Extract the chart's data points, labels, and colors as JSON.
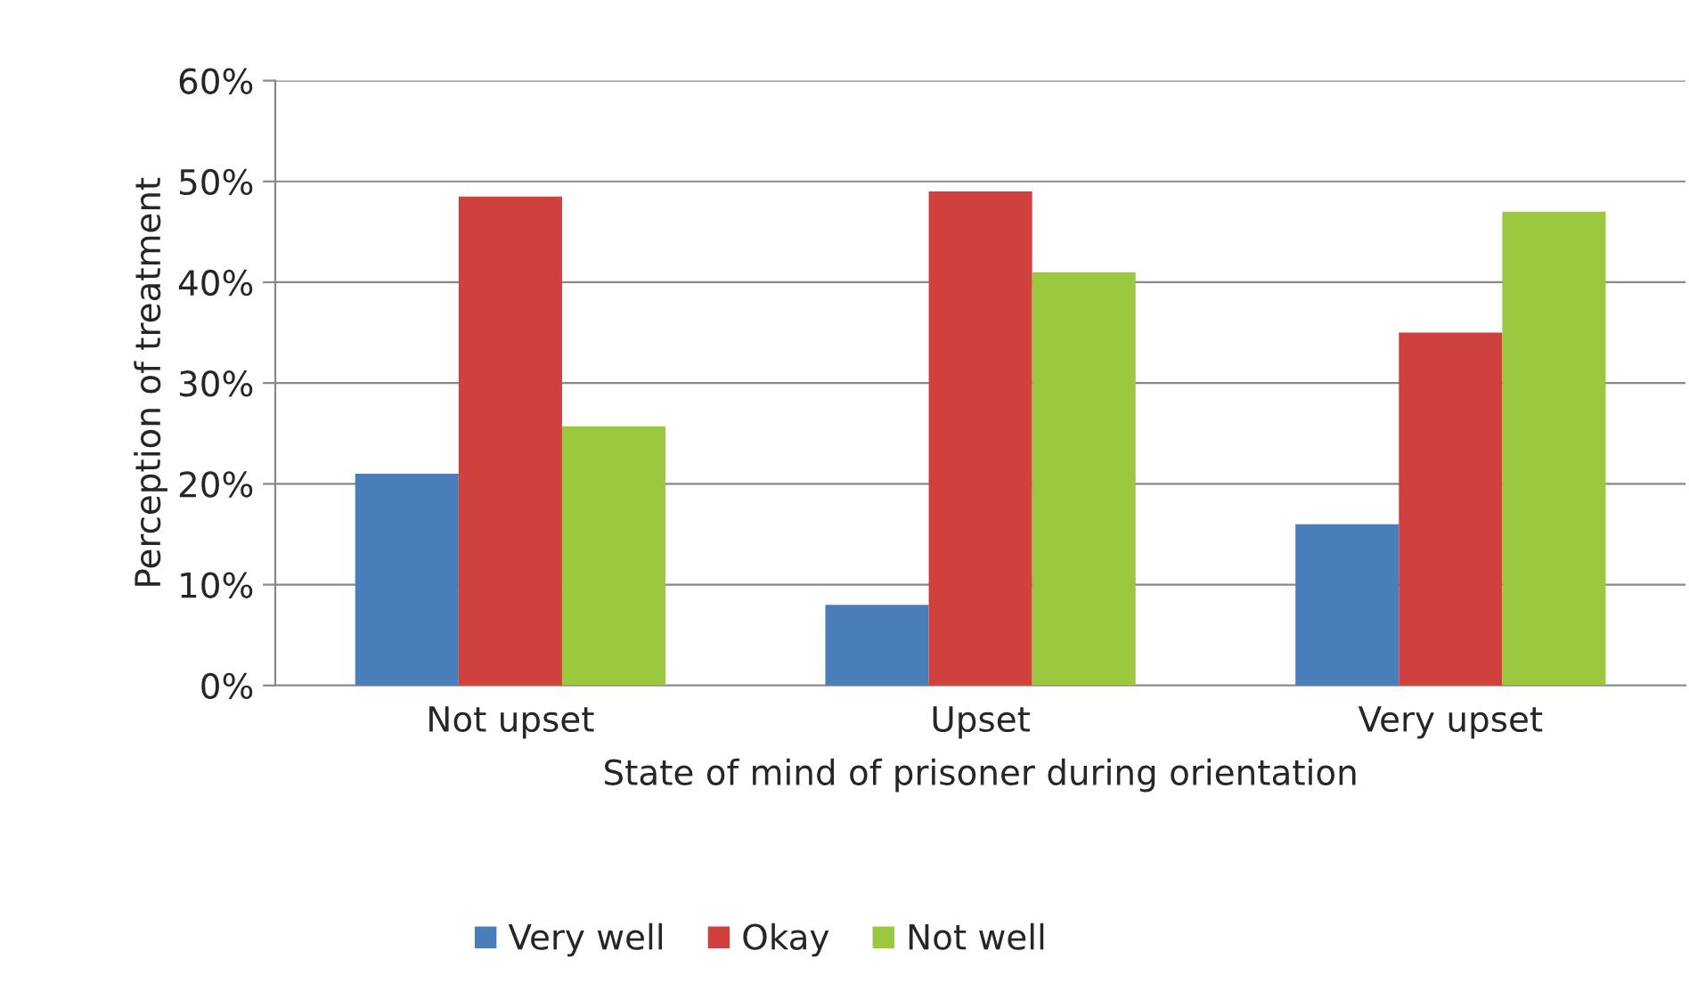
{
  "chart_data": {
    "type": "bar",
    "xlabel": "State of mind of prisoner during orientation",
    "ylabel": "Perception of treatment",
    "categories": [
      "Not upset",
      "Upset",
      "Very upset"
    ],
    "series": [
      {
        "name": "Very well",
        "color": "#4a7ebb",
        "values": [
          21,
          8,
          16
        ]
      },
      {
        "name": "Okay",
        "color": "#d0413e",
        "values": [
          48.5,
          49,
          35
        ]
      },
      {
        "name": "Not well",
        "color": "#9cc83f",
        "values": [
          25.7,
          41,
          47
        ]
      }
    ],
    "ylim": [
      0,
      60
    ],
    "yticks": [
      {
        "value": 0,
        "label": "0%"
      },
      {
        "value": 10,
        "label": "10%"
      },
      {
        "value": 20,
        "label": "20%"
      },
      {
        "value": 30,
        "label": "30%"
      },
      {
        "value": 40,
        "label": "40%"
      },
      {
        "value": 50,
        "label": "50%"
      },
      {
        "value": 60,
        "label": "60%"
      }
    ],
    "grid": "y",
    "legend": "bottom"
  }
}
